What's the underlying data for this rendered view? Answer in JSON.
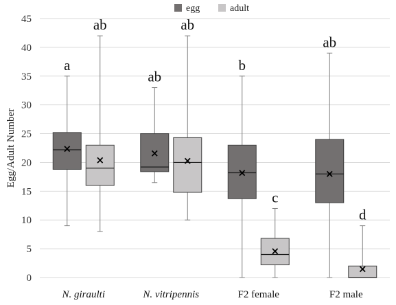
{
  "chart_data": {
    "type": "box",
    "ylabel": "Egg/Adult Number",
    "ylim": [
      0,
      45
    ],
    "yticks": [
      "0",
      "5",
      "10",
      "15",
      "20",
      "25",
      "30",
      "35",
      "40",
      "45"
    ],
    "grid": true,
    "legend_position": "top-center",
    "categories": [
      {
        "label": "N. giraulti",
        "italic": true
      },
      {
        "label": "N. vitripennis",
        "italic": true
      },
      {
        "label": "F2 female",
        "italic": false
      },
      {
        "label": "F2 male",
        "italic": false
      }
    ],
    "series": [
      {
        "name": "egg",
        "color": "#737070",
        "boxes": [
          {
            "min": 9,
            "q1": 18.8,
            "median": 22.2,
            "q3": 25.2,
            "max": 35,
            "mean": 22.4,
            "label": "a"
          },
          {
            "min": 16.5,
            "q1": 18.4,
            "median": 19.2,
            "q3": 25,
            "max": 33,
            "mean": 21.6,
            "label": "ab"
          },
          {
            "min": 0,
            "q1": 13.7,
            "median": 18.2,
            "q3": 23,
            "max": 35,
            "mean": 18.2,
            "label": "b"
          },
          {
            "min": 0,
            "q1": 13,
            "median": 18,
            "q3": 24,
            "max": 39,
            "mean": 18,
            "label": "ab"
          }
        ]
      },
      {
        "name": "adult",
        "color": "#c8c6c7",
        "boxes": [
          {
            "min": 8,
            "q1": 16,
            "median": 19,
            "q3": 23,
            "max": 42,
            "mean": 20.4,
            "label": "ab"
          },
          {
            "min": 10,
            "q1": 14.8,
            "median": 20,
            "q3": 24.3,
            "max": 42,
            "mean": 20.3,
            "label": "ab"
          },
          {
            "min": 0,
            "q1": 2.2,
            "median": 4,
            "q3": 6.8,
            "max": 12,
            "mean": 4.6,
            "label": "c"
          },
          {
            "min": 0,
            "q1": 0,
            "median": 0,
            "q3": 2,
            "max": 9,
            "mean": 1.5,
            "label": "d"
          }
        ]
      }
    ],
    "mean_symbol": "×"
  }
}
